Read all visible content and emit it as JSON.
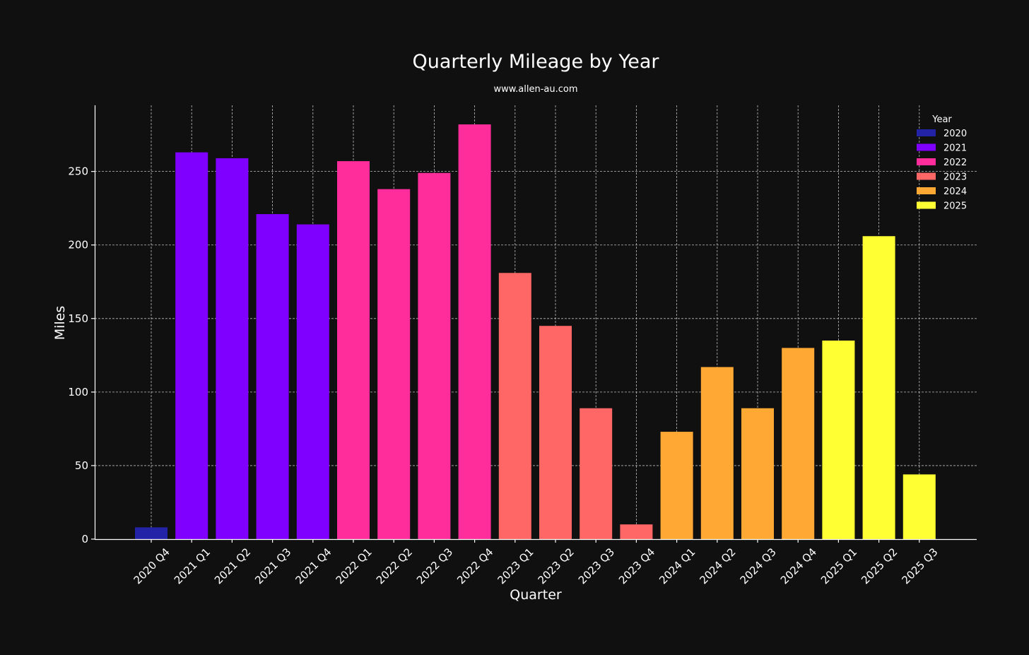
{
  "chart_data": {
    "type": "bar",
    "title": "Quarterly Mileage by Year",
    "subtitle": "www.allen-au.com",
    "xlabel": "Quarter",
    "ylabel": "Miles",
    "ylim": [
      0,
      295
    ],
    "yticks": [
      0,
      50,
      100,
      150,
      200,
      250
    ],
    "grid": true,
    "legend_title": "Year",
    "legend_position": "top-right",
    "legend": [
      {
        "label": "2020",
        "color": "#2323a8"
      },
      {
        "label": "2021",
        "color": "#8000ff"
      },
      {
        "label": "2022",
        "color": "#ff2d9b"
      },
      {
        "label": "2023",
        "color": "#ff6666"
      },
      {
        "label": "2024",
        "color": "#ffa833"
      },
      {
        "label": "2025",
        "color": "#ffff33"
      }
    ],
    "categories": [
      "2020 Q4",
      "2021 Q1",
      "2021 Q2",
      "2021 Q3",
      "2021 Q4",
      "2022 Q1",
      "2022 Q2",
      "2022 Q3",
      "2022 Q4",
      "2023 Q1",
      "2023 Q2",
      "2023 Q3",
      "2023 Q4",
      "2024 Q1",
      "2024 Q2",
      "2024 Q3",
      "2024 Q4",
      "2025 Q1",
      "2025 Q2",
      "2025 Q3"
    ],
    "values": [
      8,
      263,
      259,
      221,
      214,
      257,
      238,
      249,
      282,
      181,
      145,
      89,
      10,
      73,
      117,
      89,
      130,
      135,
      206,
      44
    ],
    "groups": [
      "2020",
      "2021",
      "2021",
      "2021",
      "2021",
      "2022",
      "2022",
      "2022",
      "2022",
      "2023",
      "2023",
      "2023",
      "2023",
      "2024",
      "2024",
      "2024",
      "2024",
      "2025",
      "2025",
      "2025"
    ]
  }
}
